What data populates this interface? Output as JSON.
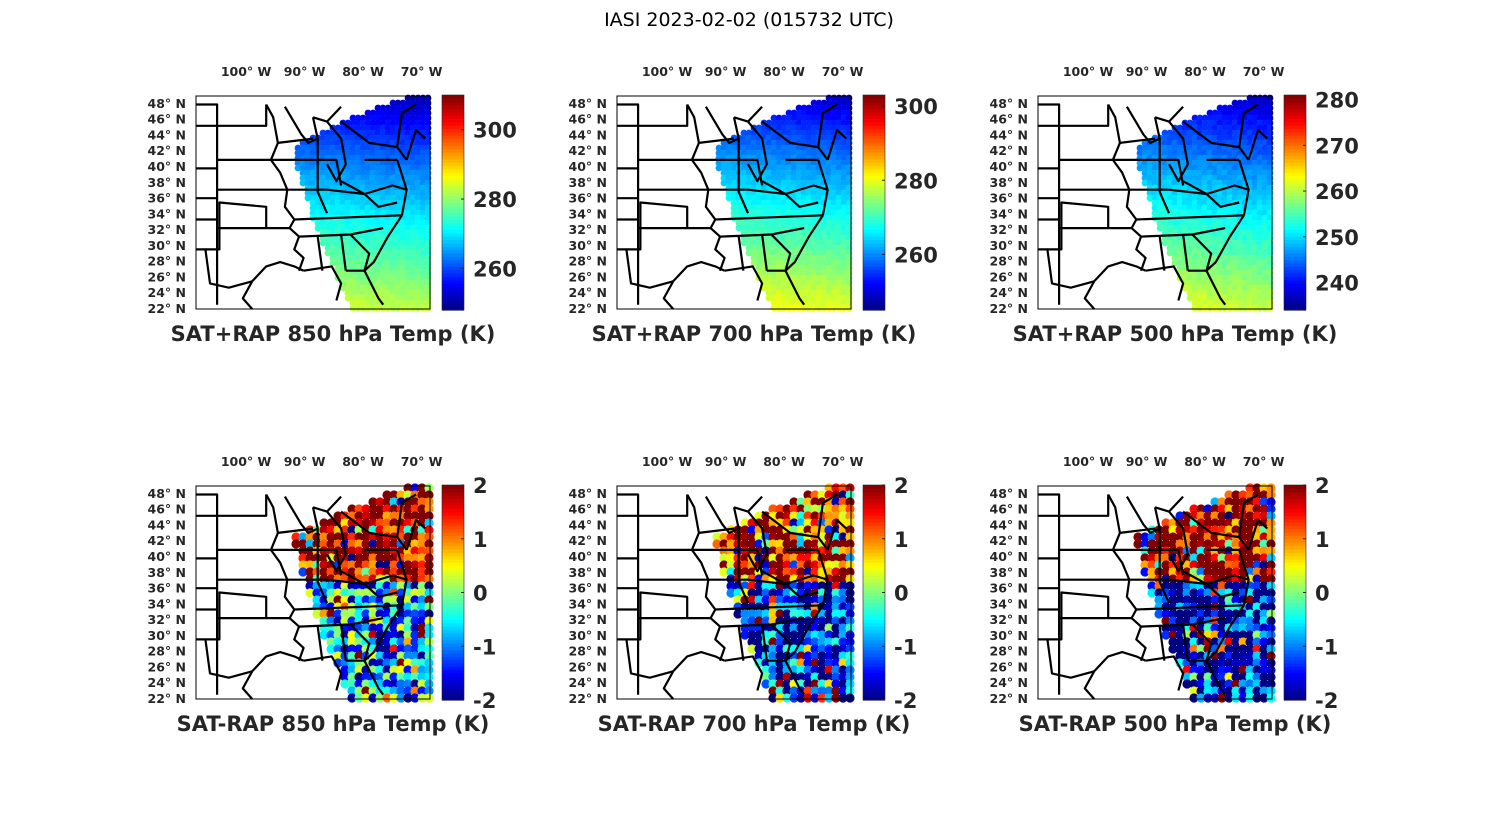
{
  "figure": {
    "suptitle": "IASI 2023-02-02 (015732 UTC)"
  },
  "chart_data": [
    {
      "type": "heatmap",
      "title": "SAT+RAP 850 hPa Temp (K)",
      "field": "sum",
      "pressure_hpa": 850,
      "x_ticks": [
        "100° W",
        "90° W",
        "80° W",
        "70° W"
      ],
      "x_tick_values": [
        -100,
        -90,
        -80,
        -70
      ],
      "y_ticks": [
        "48° N",
        "46° N",
        "44° N",
        "42° N",
        "40° N",
        "38° N",
        "36° N",
        "34° N",
        "32° N",
        "30° N",
        "28° N",
        "26° N",
        "24° N",
        "22° N"
      ],
      "y_tick_values": [
        48,
        46,
        44,
        42,
        40,
        38,
        36,
        34,
        32,
        30,
        28,
        26,
        24,
        22
      ],
      "xlim": [
        -106,
        -66
      ],
      "ylim": [
        22,
        49
      ],
      "colorbar": {
        "colormap": "jet",
        "range": [
          248,
          310
        ],
        "ticks": [
          "260",
          "280",
          "300"
        ],
        "tick_values": [
          260,
          280,
          300
        ]
      },
      "value_north": 252,
      "value_south": 284
    },
    {
      "type": "heatmap",
      "title": "SAT+RAP 700 hPa Temp (K)",
      "field": "sum",
      "pressure_hpa": 700,
      "x_ticks": [
        "100° W",
        "90° W",
        "80° W",
        "70° W"
      ],
      "x_tick_values": [
        -100,
        -90,
        -80,
        -70
      ],
      "y_ticks": [
        "48° N",
        "46° N",
        "44° N",
        "42° N",
        "40° N",
        "38° N",
        "36° N",
        "34° N",
        "32° N",
        "30° N",
        "28° N",
        "26° N",
        "24° N",
        "22° N"
      ],
      "y_tick_values": [
        48,
        46,
        44,
        42,
        40,
        38,
        36,
        34,
        32,
        30,
        28,
        26,
        24,
        22
      ],
      "xlim": [
        -106,
        -66
      ],
      "ylim": [
        22,
        49
      ],
      "colorbar": {
        "colormap": "jet",
        "range": [
          245,
          303
        ],
        "ticks": [
          "260",
          "280",
          "300"
        ],
        "tick_values": [
          260,
          280,
          300
        ]
      },
      "value_north": 250,
      "value_south": 281
    },
    {
      "type": "heatmap",
      "title": "SAT+RAP 500 hPa Temp (K)",
      "field": "sum",
      "pressure_hpa": 500,
      "x_ticks": [
        "100° W",
        "90° W",
        "80° W",
        "70° W"
      ],
      "x_tick_values": [
        -100,
        -90,
        -80,
        -70
      ],
      "y_ticks": [
        "48° N",
        "46° N",
        "44° N",
        "42° N",
        "40° N",
        "38° N",
        "36° N",
        "34° N",
        "32° N",
        "30° N",
        "28° N",
        "26° N",
        "24° N",
        "22° N"
      ],
      "y_tick_values": [
        48,
        46,
        44,
        42,
        40,
        38,
        36,
        34,
        32,
        30,
        28,
        26,
        24,
        22
      ],
      "xlim": [
        -106,
        -66
      ],
      "ylim": [
        22,
        49
      ],
      "colorbar": {
        "colormap": "jet",
        "range": [
          234,
          281
        ],
        "ticks": [
          "240",
          "250",
          "260",
          "270",
          "280"
        ],
        "tick_values": [
          240,
          250,
          260,
          270,
          280
        ]
      },
      "value_north": 238,
      "value_south": 262
    },
    {
      "type": "heatmap",
      "title": "SAT-RAP 850 hPa Temp (K)",
      "field": "difference",
      "pressure_hpa": 850,
      "x_ticks": [
        "100° W",
        "90° W",
        "80° W",
        "70° W"
      ],
      "x_tick_values": [
        -100,
        -90,
        -80,
        -70
      ],
      "y_ticks": [
        "48° N",
        "46° N",
        "44° N",
        "42° N",
        "40° N",
        "38° N",
        "36° N",
        "34° N",
        "32° N",
        "30° N",
        "28° N",
        "26° N",
        "24° N",
        "22° N"
      ],
      "y_tick_values": [
        48,
        46,
        44,
        42,
        40,
        38,
        36,
        34,
        32,
        30,
        28,
        26,
        24,
        22
      ],
      "xlim": [
        -106,
        -66
      ],
      "ylim": [
        22,
        49
      ],
      "colorbar": {
        "colormap": "jet",
        "range": [
          -2,
          2
        ],
        "ticks": [
          "2",
          "1",
          "0",
          "-1",
          "-2"
        ],
        "tick_values": [
          2,
          1,
          0,
          -1,
          -2
        ]
      },
      "value_north": 2,
      "value_south": -0.8
    },
    {
      "type": "heatmap",
      "title": "SAT-RAP 700 hPa Temp (K)",
      "field": "difference",
      "pressure_hpa": 700,
      "x_ticks": [
        "100° W",
        "90° W",
        "80° W",
        "70° W"
      ],
      "x_tick_values": [
        -100,
        -90,
        -80,
        -70
      ],
      "y_ticks": [
        "48° N",
        "46° N",
        "44° N",
        "42° N",
        "40° N",
        "38° N",
        "36° N",
        "34° N",
        "32° N",
        "30° N",
        "28° N",
        "26° N",
        "24° N",
        "22° N"
      ],
      "y_tick_values": [
        48,
        46,
        44,
        42,
        40,
        38,
        36,
        34,
        32,
        30,
        28,
        26,
        24,
        22
      ],
      "xlim": [
        -106,
        -66
      ],
      "ylim": [
        22,
        49
      ],
      "colorbar": {
        "colormap": "jet",
        "range": [
          -2,
          2
        ],
        "ticks": [
          "2",
          "1",
          "0",
          "-1",
          "-2"
        ],
        "tick_values": [
          2,
          1,
          0,
          -1,
          -2
        ]
      },
      "value_north": 1.6,
      "value_south": -1.5
    },
    {
      "type": "heatmap",
      "title": "SAT-RAP 500 hPa Temp (K)",
      "field": "difference",
      "pressure_hpa": 500,
      "x_ticks": [
        "100° W",
        "90° W",
        "80° W",
        "70° W"
      ],
      "x_tick_values": [
        -100,
        -90,
        -80,
        -70
      ],
      "y_ticks": [
        "48° N",
        "46° N",
        "44° N",
        "42° N",
        "40° N",
        "38° N",
        "36° N",
        "34° N",
        "32° N",
        "30° N",
        "28° N",
        "26° N",
        "24° N",
        "22° N"
      ],
      "y_tick_values": [
        48,
        46,
        44,
        42,
        40,
        38,
        36,
        34,
        32,
        30,
        28,
        26,
        24,
        22
      ],
      "xlim": [
        -106,
        -66
      ],
      "ylim": [
        22,
        49
      ],
      "colorbar": {
        "colormap": "jet",
        "range": [
          -2,
          2
        ],
        "ticks": [
          "2",
          "1",
          "0",
          "-1",
          "-2"
        ],
        "tick_values": [
          2,
          1,
          0,
          -1,
          -2
        ]
      },
      "value_north": 2,
      "value_south": -1.7
    }
  ]
}
